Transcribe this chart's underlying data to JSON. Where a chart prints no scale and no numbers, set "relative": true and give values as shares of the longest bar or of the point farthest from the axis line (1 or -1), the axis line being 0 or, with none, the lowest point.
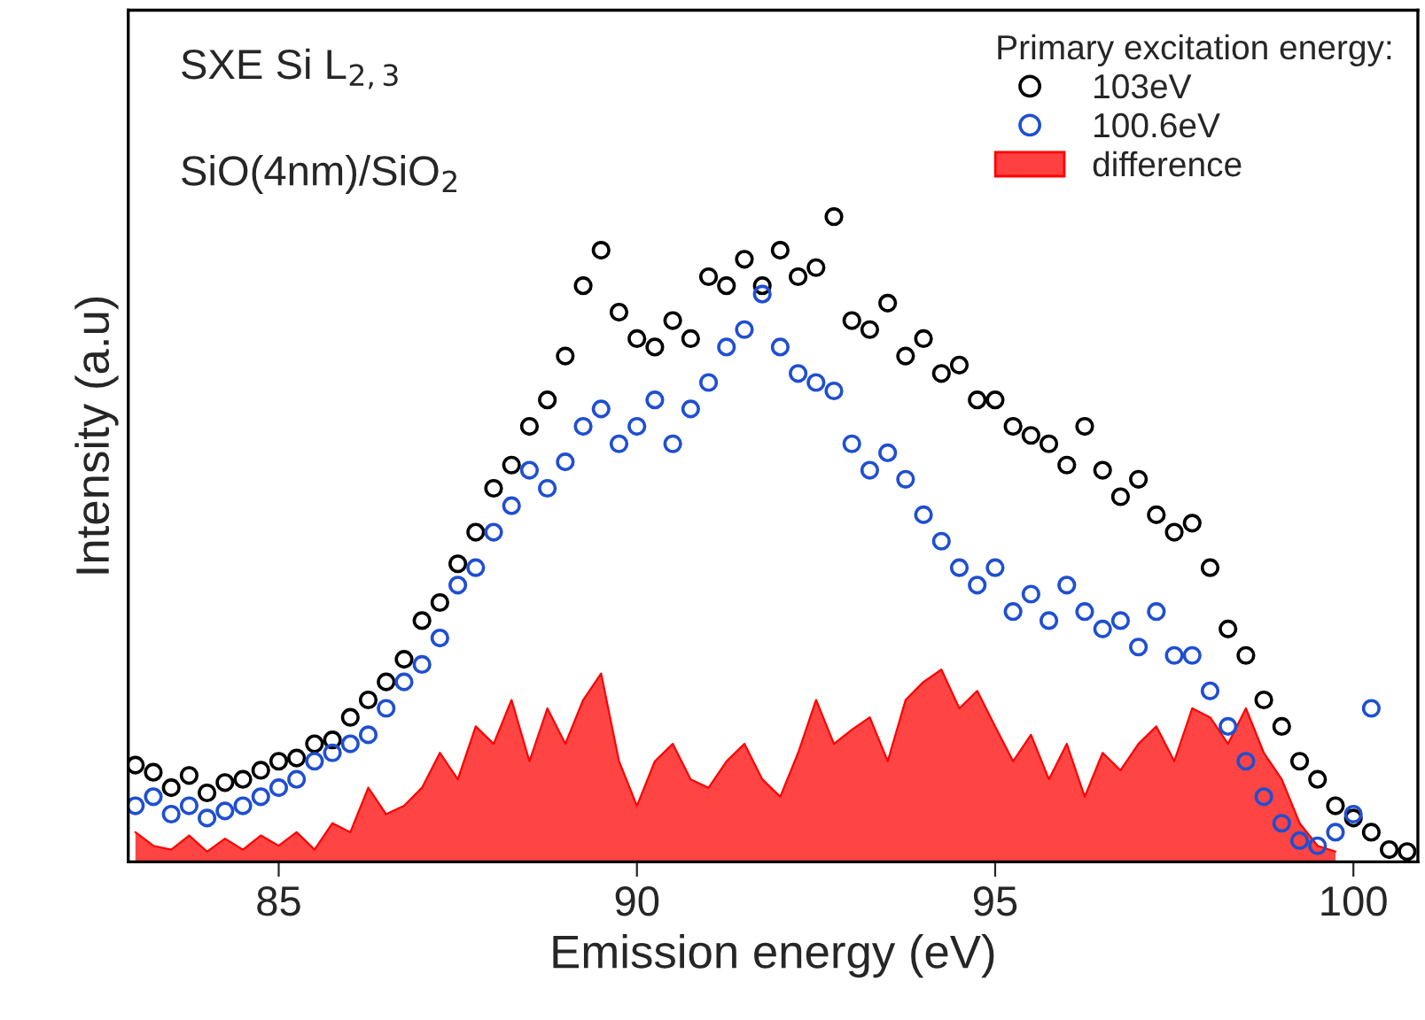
{
  "chart_data": {
    "type": "scatter",
    "xlabel": "Emission energy (eV)",
    "ylabel": "Intensity (a.u)",
    "legend_title": "Primary excitation energy:",
    "legend": "top right",
    "relative": true,
    "grid": false,
    "xlim": [
      82.9,
      100.9
    ],
    "xticks": [
      85,
      90,
      95,
      100
    ],
    "annotations": [
      "SXE Si L$_{2,3}$",
      "SiO(4nm)/SiO$_{2}$"
    ],
    "series": [
      {
        "name": "103eV",
        "marker": "circle",
        "color": "#000000",
        "x": [
          83.0,
          83.25,
          83.5,
          83.75,
          84.0,
          84.25,
          84.5,
          84.75,
          85.0,
          85.25,
          85.5,
          85.75,
          86.0,
          86.25,
          86.5,
          86.75,
          87.0,
          87.25,
          87.5,
          87.75,
          88.0,
          88.25,
          88.5,
          88.75,
          89.0,
          89.25,
          89.5,
          89.75,
          90.0,
          90.25,
          90.5,
          90.75,
          91.0,
          91.25,
          91.5,
          91.75,
          92.0,
          92.25,
          92.5,
          92.75,
          93.0,
          93.25,
          93.5,
          93.75,
          94.0,
          94.25,
          94.5,
          94.75,
          95.0,
          95.25,
          95.5,
          95.75,
          96.0,
          96.25,
          96.5,
          96.75,
          97.0,
          97.25,
          97.5,
          97.75,
          98.0,
          98.25,
          98.5,
          98.75,
          99.0,
          99.25,
          99.5,
          99.75,
          100.0,
          100.25,
          100.5,
          100.75
        ],
        "values": [
          0.15,
          0.139,
          0.115,
          0.134,
          0.107,
          0.123,
          0.128,
          0.142,
          0.156,
          0.161,
          0.183,
          0.189,
          0.224,
          0.251,
          0.279,
          0.314,
          0.374,
          0.402,
          0.462,
          0.511,
          0.579,
          0.615,
          0.675,
          0.716,
          0.784,
          0.893,
          0.948,
          0.852,
          0.811,
          0.798,
          0.839,
          0.811,
          0.907,
          0.893,
          0.934,
          0.893,
          0.948,
          0.907,
          0.921,
          1.0,
          0.839,
          0.825,
          0.866,
          0.784,
          0.811,
          0.757,
          0.77,
          0.716,
          0.716,
          0.675,
          0.661,
          0.648,
          0.615,
          0.675,
          0.607,
          0.566,
          0.593,
          0.538,
          0.511,
          0.525,
          0.456,
          0.361,
          0.32,
          0.251,
          0.21,
          0.156,
          0.128,
          0.087,
          0.068,
          0.046,
          0.019,
          0.016
        ]
      },
      {
        "name": "100.6eV",
        "marker": "circle",
        "color": "#1f4fd1",
        "x": [
          83.0,
          83.25,
          83.5,
          83.75,
          84.0,
          84.25,
          84.5,
          84.75,
          85.0,
          85.25,
          85.5,
          85.75,
          86.0,
          86.25,
          86.5,
          86.75,
          87.0,
          87.25,
          87.5,
          87.75,
          88.0,
          88.25,
          88.5,
          88.75,
          89.0,
          89.25,
          89.5,
          89.75,
          90.0,
          90.25,
          90.5,
          90.75,
          91.0,
          91.25,
          91.5,
          91.75,
          92.0,
          92.25,
          92.5,
          92.75,
          93.0,
          93.25,
          93.5,
          93.75,
          94.0,
          94.25,
          94.5,
          94.75,
          95.0,
          95.25,
          95.5,
          95.75,
          96.0,
          96.25,
          96.5,
          96.75,
          97.0,
          97.25,
          97.5,
          97.75,
          98.0,
          98.25,
          98.5,
          98.75,
          99.0,
          99.25,
          99.5,
          99.75,
          100.0,
          100.25
        ],
        "values": [
          0.087,
          0.101,
          0.074,
          0.087,
          0.068,
          0.079,
          0.087,
          0.101,
          0.115,
          0.128,
          0.156,
          0.169,
          0.183,
          0.197,
          0.238,
          0.279,
          0.306,
          0.347,
          0.429,
          0.456,
          0.511,
          0.552,
          0.607,
          0.579,
          0.62,
          0.675,
          0.702,
          0.648,
          0.675,
          0.716,
          0.648,
          0.702,
          0.743,
          0.798,
          0.825,
          0.88,
          0.798,
          0.757,
          0.743,
          0.73,
          0.648,
          0.607,
          0.634,
          0.593,
          0.538,
          0.497,
          0.456,
          0.429,
          0.456,
          0.388,
          0.415,
          0.374,
          0.429,
          0.388,
          0.361,
          0.374,
          0.333,
          0.388,
          0.32,
          0.32,
          0.265,
          0.21,
          0.156,
          0.101,
          0.06,
          0.033,
          0.025,
          0.046,
          0.074,
          0.238
        ]
      },
      {
        "name": "difference",
        "type": "area",
        "color": "#ff4040",
        "x": [
          83.0,
          83.25,
          83.5,
          83.75,
          84.0,
          84.25,
          84.5,
          84.75,
          85.0,
          85.25,
          85.5,
          85.75,
          86.0,
          86.25,
          86.5,
          86.75,
          87.0,
          87.25,
          87.5,
          87.75,
          88.0,
          88.25,
          88.5,
          88.75,
          89.0,
          89.25,
          89.5,
          89.75,
          90.0,
          90.25,
          90.5,
          90.75,
          91.0,
          91.25,
          91.5,
          91.75,
          92.0,
          92.25,
          92.5,
          92.75,
          93.0,
          93.25,
          93.5,
          93.75,
          94.0,
          94.25,
          94.5,
          94.75,
          95.0,
          95.25,
          95.5,
          95.75,
          96.0,
          96.25,
          96.5,
          96.75,
          97.0,
          97.25,
          97.5,
          97.75,
          98.0,
          98.25,
          98.5,
          98.75,
          99.0,
          99.25,
          99.5,
          99.75
        ],
        "values": [
          0.046,
          0.025,
          0.019,
          0.041,
          0.016,
          0.036,
          0.019,
          0.041,
          0.025,
          0.046,
          0.019,
          0.06,
          0.046,
          0.115,
          0.074,
          0.087,
          0.115,
          0.169,
          0.128,
          0.21,
          0.183,
          0.251,
          0.156,
          0.238,
          0.183,
          0.251,
          0.292,
          0.156,
          0.087,
          0.156,
          0.183,
          0.128,
          0.115,
          0.156,
          0.183,
          0.128,
          0.101,
          0.169,
          0.251,
          0.183,
          0.205,
          0.224,
          0.156,
          0.251,
          0.279,
          0.298,
          0.238,
          0.265,
          0.21,
          0.156,
          0.197,
          0.128,
          0.183,
          0.101,
          0.169,
          0.142,
          0.183,
          0.21,
          0.156,
          0.238,
          0.224,
          0.183,
          0.238,
          0.169,
          0.128,
          0.06,
          0.025,
          0.016
        ]
      }
    ]
  }
}
